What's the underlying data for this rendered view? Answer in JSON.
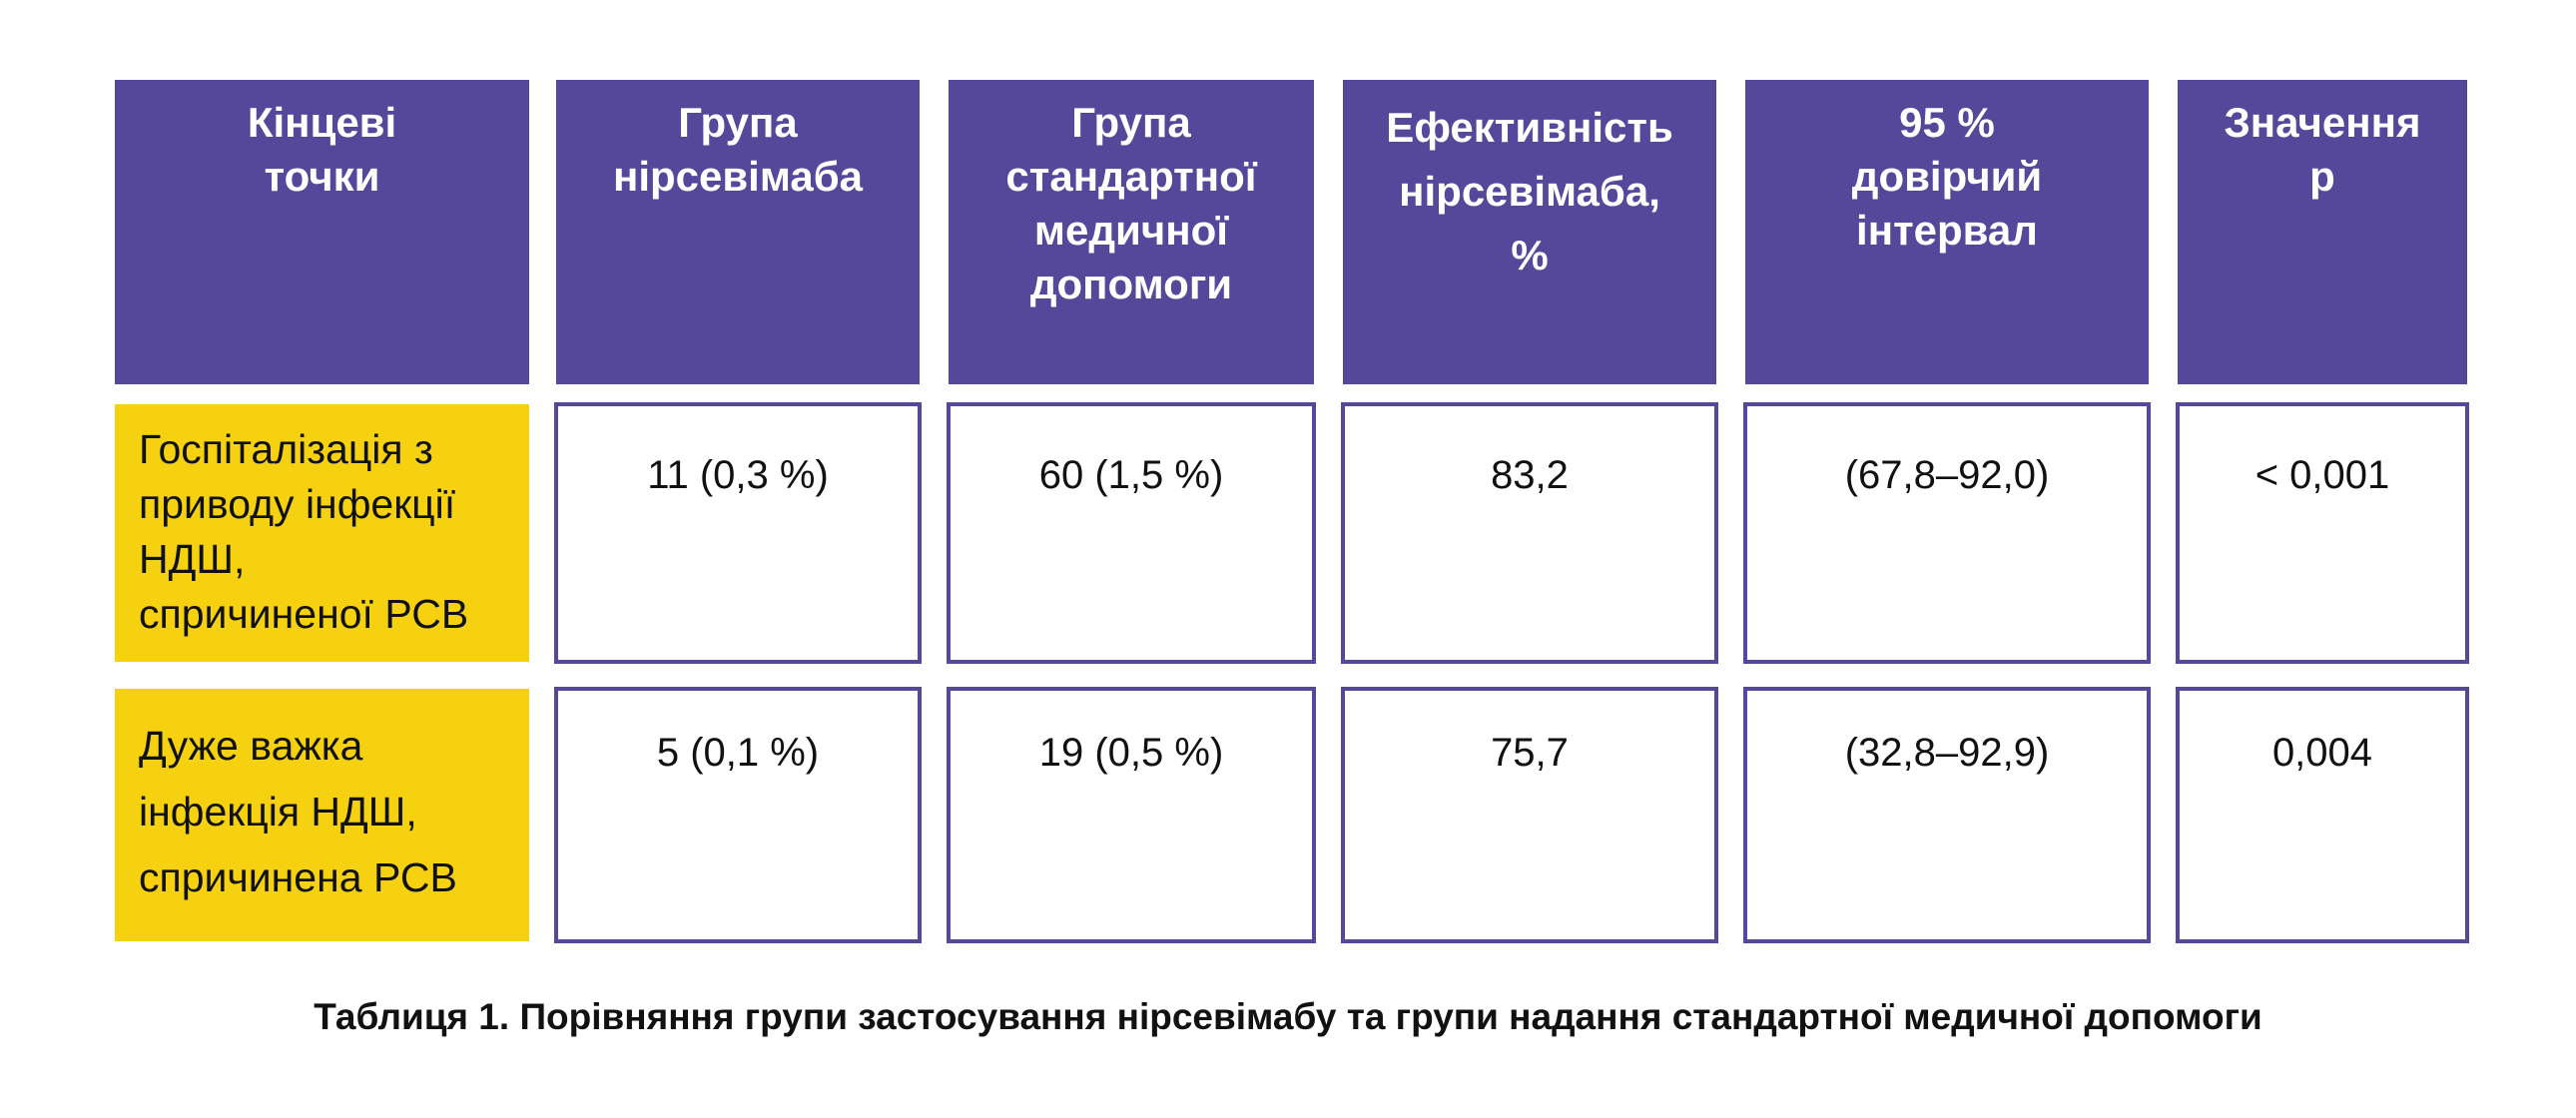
{
  "table": {
    "headers": [
      "Кінцеві\nточки",
      "Група\nнірсевімаба",
      "Група\nстандартної\nмедичної\nдопомоги",
      "Ефективність\nнірсевімаба,\n%",
      "95 %\nдовірчий\nінтервал",
      "Значення\np"
    ],
    "rows": [
      {
        "label": "Госпіталізація з\nприводу інфекції\nНДШ,\nспричиненої РСВ",
        "cells": [
          "11 (0,3 %)",
          "60 (1,5 %)",
          "83,2",
          "(67,8–92,0)",
          "< 0,001"
        ]
      },
      {
        "label": "Дуже важка\nінфекція НДШ,\nспричинена РСВ",
        "cells": [
          "5 (0,1 %)",
          "19 (0,5 %)",
          "75,7",
          "(32,8–92,9)",
          "0,004"
        ]
      }
    ]
  },
  "caption": "Таблиця 1. Порівняння групи застосування нірсевімабу та групи надання стандартної медичної допомоги",
  "colors": {
    "header_bg": "#55479a",
    "header_text": "#ffffff",
    "row_label_bg": "#f5d10f",
    "cell_border": "#55479a"
  }
}
